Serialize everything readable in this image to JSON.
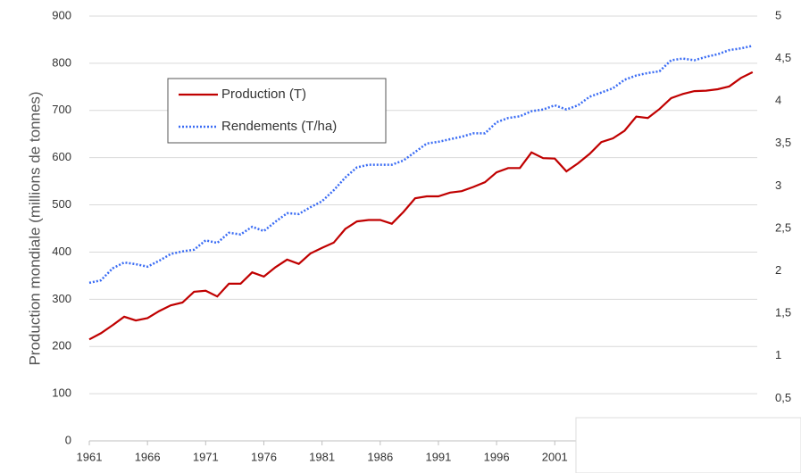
{
  "chart_data": {
    "type": "line",
    "y_label": "Production mondiale (millions de tonnes)",
    "x": [
      1961,
      1962,
      1963,
      1964,
      1965,
      1966,
      1967,
      1968,
      1969,
      1970,
      1971,
      1972,
      1973,
      1974,
      1975,
      1976,
      1977,
      1978,
      1979,
      1980,
      1981,
      1982,
      1983,
      1984,
      1985,
      1986,
      1987,
      1988,
      1989,
      1990,
      1991,
      1992,
      1993,
      1994,
      1995,
      1996,
      1997,
      1998,
      1999,
      2000,
      2001,
      2002,
      2003,
      2004,
      2005,
      2006,
      2007,
      2008,
      2009,
      2010,
      2011,
      2012,
      2013,
      2014,
      2015,
      2016,
      2017,
      2018
    ],
    "xlim": [
      1961,
      2018.4
    ],
    "xticks": [
      1961,
      1966,
      1971,
      1976,
      1981,
      1986,
      1991,
      1996,
      2001
    ],
    "ylim": [
      0,
      900
    ],
    "yticks": [
      0,
      100,
      200,
      300,
      400,
      500,
      600,
      700,
      800,
      900
    ],
    "y2lim": [
      0,
      5
    ],
    "y2ticks": [
      0,
      {
        "value": 0.5,
        "label": "0,5"
      },
      1,
      {
        "value": 1.5,
        "label": "1,5"
      },
      2,
      {
        "value": 2.5,
        "label": "2,5"
      },
      3,
      {
        "value": 3.5,
        "label": "3,5"
      },
      4,
      {
        "value": 4.5,
        "label": "4,5"
      },
      5
    ],
    "grid": true,
    "legend": "upper left",
    "series": [
      {
        "name": "Production (T)",
        "color": "#c00000",
        "style": "solid",
        "values": [
          215,
          228,
          245,
          263,
          255,
          260,
          275,
          287,
          293,
          316,
          318,
          306,
          333,
          333,
          357,
          348,
          368,
          384,
          375,
          397,
          409,
          420,
          449,
          465,
          468,
          468,
          460,
          485,
          514,
          518,
          518,
          526,
          529,
          538,
          548,
          569,
          578,
          578,
          611,
          599,
          598,
          571,
          588,
          608,
          633,
          641,
          657,
          687,
          684,
          703,
          726,
          735,
          741,
          742,
          745,
          751,
          769,
          781
        ]
      },
      {
        "name": "Rendements (T/ha)",
        "color": "#3a6cf4",
        "style": "dotted",
        "axis": "y2",
        "values": [
          1.86,
          1.89,
          2.03,
          2.1,
          2.08,
          2.05,
          2.12,
          2.2,
          2.23,
          2.25,
          2.36,
          2.33,
          2.45,
          2.43,
          2.52,
          2.47,
          2.58,
          2.68,
          2.67,
          2.75,
          2.82,
          2.95,
          3.1,
          3.22,
          3.25,
          3.25,
          3.25,
          3.3,
          3.4,
          3.5,
          3.52,
          3.55,
          3.58,
          3.62,
          3.62,
          3.75,
          3.8,
          3.82,
          3.88,
          3.9,
          3.95,
          3.9,
          3.95,
          4.05,
          4.1,
          4.15,
          4.25,
          4.3,
          4.33,
          4.35,
          4.48,
          4.5,
          4.48,
          4.52,
          4.55,
          4.6,
          4.62,
          4.65
        ]
      }
    ]
  }
}
